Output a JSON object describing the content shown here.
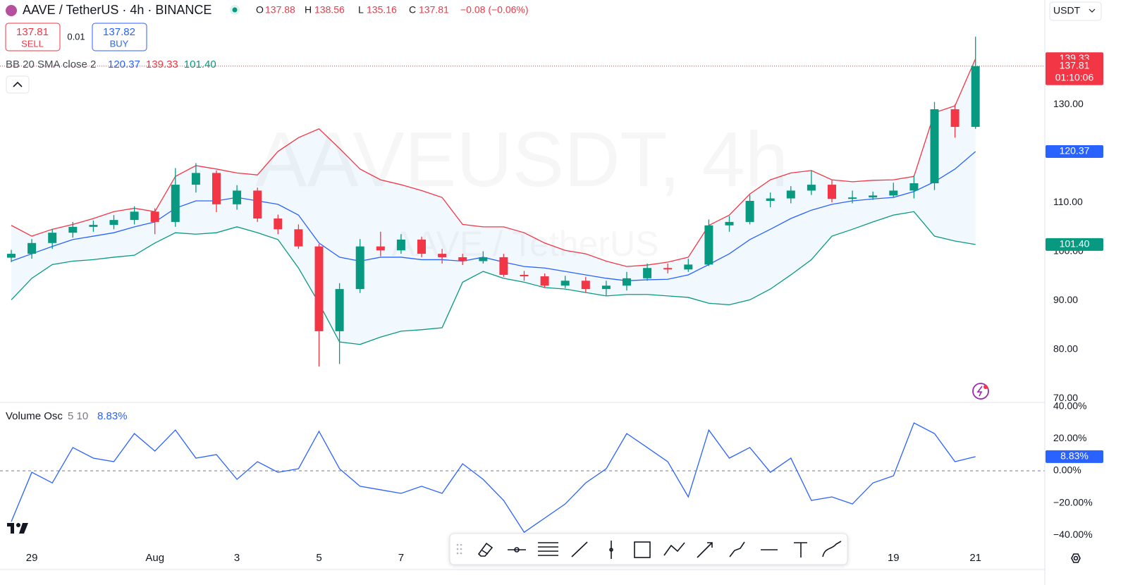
{
  "header": {
    "symbol": "AAVE / TetherUS · 4h · BINANCE",
    "ohlc": [
      {
        "key": "O",
        "value": "137.88"
      },
      {
        "key": "H",
        "value": "138.56"
      },
      {
        "key": "L",
        "value": "135.16"
      },
      {
        "key": "C",
        "value": "137.81"
      }
    ],
    "change": "−0.08 (−0.06%)",
    "sell": {
      "price": "137.81",
      "label": "SELL"
    },
    "spread": "0.01",
    "buy": {
      "price": "137.82",
      "label": "BUY"
    },
    "currency": "USDT",
    "countdown": "01:10:06",
    "watermark": "AAVEUSDT, 4h",
    "watermark_sub": "AAVE / TetherUS"
  },
  "chart_data": [
    {
      "type": "candlestick",
      "categories": [
        null,
        "29",
        null,
        null,
        null,
        null,
        null,
        "Aug",
        null,
        null,
        null,
        "3",
        null,
        null,
        null,
        "5",
        null,
        null,
        null,
        "7",
        null,
        null,
        null,
        null,
        null,
        null,
        null,
        null,
        null,
        null,
        null,
        null,
        null,
        null,
        null,
        null,
        null,
        null,
        null,
        null,
        null,
        null,
        null,
        "19",
        null,
        null,
        null,
        "21"
      ],
      "open": [
        98.7,
        99.5,
        101.7,
        103.8,
        105,
        105.4,
        106.4,
        108.1,
        106,
        113.6,
        116,
        109.6,
        112.4,
        106.7,
        104.5,
        101,
        83.7,
        92.3,
        101,
        100.2,
        102.4,
        99.5,
        98.8,
        98,
        98.8,
        95.2,
        94.9,
        93,
        94,
        92.3,
        93,
        94.5,
        96.6,
        96.3,
        97.3,
        105.3,
        106,
        110.3,
        110.8,
        112.4,
        113.6,
        110.7,
        111,
        111.4,
        112.4,
        113.9,
        129,
        125.4
      ],
      "high": [
        100.3,
        102.5,
        104.6,
        106,
        106.3,
        107.4,
        109.2,
        108.8,
        117,
        118,
        116.5,
        113.5,
        113,
        107.5,
        105.5,
        101.5,
        93.5,
        102.5,
        104,
        103.5,
        103,
        100.5,
        99.5,
        100,
        99.5,
        96,
        95.5,
        95,
        94.8,
        94,
        95.8,
        97.5,
        97.5,
        98.5,
        106.5,
        107.2,
        111.5,
        112,
        113.3,
        116.5,
        114.5,
        112.4,
        112.2,
        114,
        115.5,
        130.5,
        130,
        143.8
      ],
      "low": [
        97.8,
        98.5,
        100.5,
        102.8,
        104,
        104.5,
        105.5,
        103.5,
        105,
        112,
        108,
        108.5,
        106,
        103.5,
        100.5,
        76.5,
        77,
        91.5,
        99,
        99.5,
        98.8,
        97.5,
        97.2,
        97.5,
        94.8,
        94,
        92.5,
        92.5,
        91.5,
        91,
        92,
        94,
        95.5,
        95.8,
        97,
        104,
        105.5,
        109,
        109.8,
        111.5,
        110,
        109.8,
        110.5,
        111,
        110.8,
        112.5,
        123.2,
        125
      ],
      "close": [
        99.5,
        101.7,
        103.8,
        105,
        105.4,
        106.4,
        108.1,
        106,
        113.6,
        116,
        109.6,
        112.4,
        106.7,
        104.5,
        101,
        83.7,
        92.3,
        101,
        100.2,
        102.4,
        99.5,
        98.8,
        98,
        98.8,
        95.2,
        94.9,
        93,
        94,
        92.3,
        93,
        94.5,
        96.6,
        96.3,
        97.3,
        105.3,
        106,
        110.3,
        110.8,
        112.4,
        113.6,
        110.7,
        111,
        111.4,
        112.4,
        113.9,
        129,
        125.4,
        137.81
      ],
      "up_color": "#089981",
      "down_color": "#f23645",
      "indicator": "BB 20 SMA close 2",
      "series": [
        {
          "color": "#2962ff",
          "value_label": "120.37",
          "values": [
            98,
            99.5,
            101,
            102.4,
            103.1,
            103.8,
            105,
            106,
            108.8,
            110.3,
            110.3,
            111,
            110.3,
            109.6,
            107.4,
            101.7,
            98.8,
            98,
            98.8,
            98.8,
            98.3,
            98.3,
            98,
            98.8,
            97.8,
            96.9,
            96.6,
            95.9,
            95.2,
            94.5,
            94,
            94.2,
            94.3,
            95.2,
            97.3,
            99.5,
            102.4,
            104.5,
            106.7,
            108.4,
            109.6,
            110.3,
            110.7,
            111,
            112.2,
            114.2,
            116.8,
            120.37
          ]
        },
        {
          "color": "#f23645",
          "value_label": "139.33",
          "values": [
            105.3,
            103.1,
            104.5,
            105.5,
            106.7,
            108.1,
            108.8,
            108.1,
            115.3,
            117.5,
            116.8,
            116,
            115.6,
            120.4,
            123.2,
            125,
            121,
            116.8,
            114.6,
            113.6,
            112.4,
            111,
            105.5,
            105,
            105,
            103.8,
            101.7,
            100.2,
            99.5,
            98,
            96.9,
            97.2,
            97.8,
            98.8,
            105.3,
            107.4,
            111.7,
            114.6,
            116,
            116.5,
            114.6,
            114.2,
            114.5,
            114.6,
            115.3,
            128.3,
            129.7,
            139.33
          ]
        },
        {
          "color": "#089981",
          "value_label": "101.40",
          "values": [
            90.1,
            94.5,
            97.3,
            98,
            98.3,
            98.8,
            99.2,
            101.7,
            103.8,
            103.5,
            103.8,
            105,
            103.8,
            102.4,
            96.6,
            89.4,
            81.5,
            81,
            82.5,
            83.7,
            84,
            84.4,
            93.7,
            95.9,
            94.5,
            93.7,
            92.6,
            92.3,
            91.6,
            90.9,
            91.2,
            91.2,
            90.9,
            90.6,
            89.4,
            89.1,
            90.1,
            92.3,
            95.2,
            98.3,
            103.1,
            104.5,
            106,
            107.4,
            108.1,
            103.1,
            102.1,
            101.4
          ]
        }
      ],
      "band_fill": "#2196f3",
      "ylim": [
        69.3,
        151.3
      ],
      "yticks": [
        {
          "value": 70,
          "label": "70.00"
        },
        {
          "value": 80,
          "label": "80.00"
        },
        {
          "value": 90,
          "label": "90.00"
        },
        {
          "value": 100,
          "label": "100.00"
        },
        {
          "value": 110,
          "label": "110.00"
        },
        {
          "value": 130,
          "label": "130.00"
        }
      ]
    },
    {
      "type": "line",
      "title": "Volume Osc",
      "params": "5 10",
      "series": [
        {
          "color": "#2962ff",
          "value_label": "8.83%",
          "values": [
            -31.6,
            -0.9,
            -7.5,
            14.5,
            7.9,
            5.7,
            23.2,
            12.3,
            25.4,
            7.9,
            10.1,
            -5.3,
            5.7,
            -0.9,
            1.3,
            24.6,
            1.3,
            -9.6,
            -11.8,
            -14,
            -9.6,
            -14,
            4.4,
            -5.3,
            -18.4,
            -38.2,
            -29.4,
            -20.6,
            -7.5,
            1.3,
            23.2,
            14.5,
            5.7,
            -16.2,
            25.4,
            7.9,
            14.5,
            -0.9,
            7.9,
            -18.4,
            -16.2,
            -20.6,
            -7.5,
            -3.1,
            29.8,
            23.2,
            5.7,
            8.83
          ]
        }
      ],
      "ylim": [
        -44.7,
        42.1
      ],
      "yticks": [
        {
          "value": 40,
          "label": "40.00%"
        },
        {
          "value": 20,
          "label": "20.00%"
        },
        {
          "value": 0,
          "label": "0.00%"
        },
        {
          "value": -20,
          "label": "−20.00%"
        },
        {
          "value": -40,
          "label": "−40.00%"
        }
      ],
      "zero_line": 0
    }
  ]
}
